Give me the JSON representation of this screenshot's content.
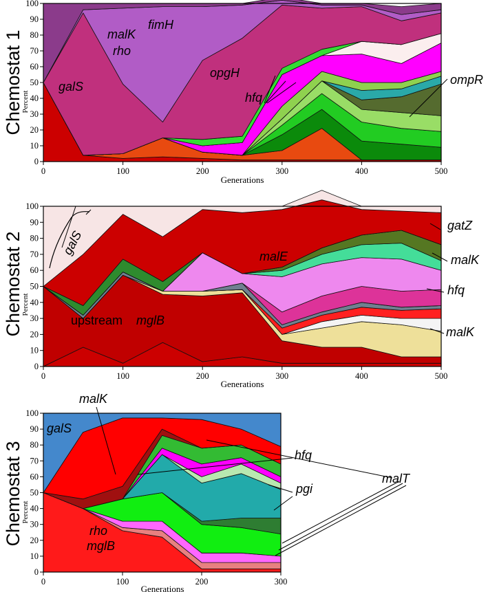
{
  "chart_data": [
    {
      "type": "area",
      "title": "Chemostat 1",
      "xlabel": "Generations",
      "ylabel": "Percent",
      "xlim": [
        0,
        500
      ],
      "ylim": [
        0,
        100
      ],
      "xticks": [
        0,
        100,
        200,
        300,
        400,
        500
      ],
      "yticks": [
        0,
        10,
        20,
        30,
        40,
        50,
        60,
        70,
        80,
        90,
        100
      ],
      "x": [
        0,
        50,
        100,
        150,
        200,
        250,
        300,
        350,
        400,
        450,
        500
      ],
      "series": [
        {
          "name": "galS",
          "color": "#cc0000",
          "values": [
            50,
            4,
            2,
            3,
            2,
            1,
            1,
            1,
            1,
            1,
            1
          ]
        },
        {
          "name": "orange",
          "color": "#e84a10",
          "values": [
            0,
            0,
            3,
            12,
            4,
            3,
            6,
            20,
            0,
            0,
            0
          ]
        },
        {
          "name": "dark green",
          "color": "#0b8a0b",
          "values": [
            0,
            0,
            0,
            0,
            0,
            0,
            10,
            12,
            12,
            10,
            8
          ]
        },
        {
          "name": "green",
          "color": "#22cc22",
          "values": [
            0,
            0,
            0,
            0,
            0,
            0,
            6,
            10,
            12,
            10,
            10
          ]
        },
        {
          "name": "light green",
          "color": "#99dd66",
          "values": [
            0,
            0,
            0,
            0,
            0,
            0,
            4,
            8,
            8,
            10,
            10
          ]
        },
        {
          "name": "ompR",
          "color": "#556b2f",
          "values": [
            0,
            0,
            0,
            0,
            0,
            0,
            0,
            0,
            6,
            10,
            20
          ]
        },
        {
          "name": "teal",
          "color": "#2aa9a9",
          "values": [
            0,
            0,
            0,
            0,
            0,
            0,
            0,
            0,
            6,
            5,
            5
          ]
        },
        {
          "name": "hfq",
          "color": "#8fd14f",
          "values": [
            0,
            0,
            0,
            0,
            0,
            0,
            8,
            6,
            5,
            4,
            3
          ]
        },
        {
          "name": "opgH",
          "color": "#ff00ff",
          "values": [
            0,
            0,
            0,
            0,
            4,
            8,
            20,
            10,
            18,
            12,
            18
          ]
        },
        {
          "name": "white",
          "color": "#fbeeee",
          "values": [
            0,
            0,
            0,
            0,
            0,
            0,
            0,
            0,
            8,
            12,
            6
          ]
        },
        {
          "name": "green band",
          "color": "#33dd33",
          "values": [
            0,
            0,
            0,
            0,
            4,
            4,
            4,
            4,
            0,
            0,
            0
          ]
        },
        {
          "name": "malK rho",
          "color": "#c0307d",
          "values": [
            0,
            90,
            44,
            10,
            50,
            62,
            40,
            26,
            22,
            15,
            13
          ]
        },
        {
          "name": "fimH",
          "color": "#b15cc6",
          "values": [
            0,
            2,
            48,
            73,
            34,
            21,
            3,
            2,
            1,
            4,
            2
          ]
        },
        {
          "name": "purple top",
          "color": "#8b3b8b",
          "values": [
            50,
            4,
            3,
            2,
            2,
            1,
            2,
            1,
            1,
            5,
            4
          ]
        }
      ],
      "annotations": [
        "galS",
        "malK",
        "rho",
        "fimH",
        "opgH",
        "hfq",
        "ompR"
      ]
    },
    {
      "type": "area",
      "title": "Chemostat 2",
      "xlabel": "Generations",
      "ylabel": "Percent",
      "xlim": [
        0,
        500
      ],
      "ylim": [
        0,
        100
      ],
      "xticks": [
        0,
        100,
        200,
        300,
        400,
        500
      ],
      "yticks": [
        0,
        10,
        20,
        30,
        40,
        50,
        60,
        70,
        80,
        90,
        100
      ],
      "x": [
        0,
        50,
        100,
        150,
        200,
        250,
        300,
        350,
        400,
        450,
        500
      ],
      "series": [
        {
          "name": "upstream mglB (lower)",
          "color": "#cc0000",
          "values": [
            0,
            12,
            2,
            15,
            3,
            6,
            2,
            2,
            2,
            2,
            2
          ]
        },
        {
          "name": "upstream mglB",
          "color": "#c00000",
          "values": [
            50,
            18,
            55,
            30,
            41,
            40,
            14,
            10,
            10,
            4,
            4
          ]
        },
        {
          "name": "yellow",
          "color": "#eee09a",
          "values": [
            0,
            0,
            0,
            2,
            3,
            2,
            4,
            12,
            16,
            20,
            16
          ]
        },
        {
          "name": "white",
          "color": "#f4f4f4",
          "values": [
            0,
            0,
            0,
            0,
            0,
            0,
            0,
            4,
            4,
            4,
            8
          ]
        },
        {
          "name": "malK (lower)",
          "color": "#ff2020",
          "values": [
            0,
            0,
            0,
            0,
            0,
            0,
            4,
            4,
            5,
            5,
            6
          ]
        },
        {
          "name": "grey",
          "color": "#708090",
          "values": [
            0,
            2,
            2,
            0,
            0,
            4,
            2,
            2,
            3,
            2,
            2
          ]
        },
        {
          "name": "hfq",
          "color": "#dd3399",
          "values": [
            0,
            0,
            0,
            0,
            0,
            0,
            8,
            10,
            10,
            10,
            10
          ]
        },
        {
          "name": "malE",
          "color": "#ee88ee",
          "values": [
            0,
            0,
            0,
            0,
            24,
            6,
            22,
            20,
            18,
            20,
            12
          ]
        },
        {
          "name": "malK (upper)",
          "color": "#44dd99",
          "values": [
            0,
            0,
            0,
            0,
            0,
            0,
            4,
            6,
            8,
            10,
            6
          ]
        },
        {
          "name": "gatZ",
          "color": "#557722",
          "values": [
            0,
            0,
            0,
            0,
            0,
            0,
            2,
            4,
            6,
            8,
            10
          ]
        },
        {
          "name": "galS green",
          "color": "#2e8b2e",
          "values": [
            0,
            6,
            8,
            6,
            0,
            0,
            0,
            0,
            0,
            0,
            0
          ]
        },
        {
          "name": "red top",
          "color": "#cc0000",
          "values": [
            0,
            32,
            28,
            28,
            27,
            38,
            36,
            30,
            16,
            12,
            20
          ]
        },
        {
          "name": "pink top",
          "color": "#f7e5e5",
          "values": [
            50,
            30,
            5,
            19,
            2,
            4,
            2,
            6,
            2,
            3,
            4
          ]
        }
      ],
      "annotations": [
        "galS",
        "malE",
        "upstream",
        "mglB",
        "gatZ",
        "malK",
        "hfq",
        "malK"
      ]
    },
    {
      "type": "area",
      "title": "Chemostat 3",
      "xlabel": "Generations",
      "ylabel": "Percent",
      "xlim": [
        0,
        300
      ],
      "ylim": [
        0,
        100
      ],
      "xticks": [
        0,
        100,
        200,
        300
      ],
      "yticks": [
        0,
        10,
        20,
        30,
        40,
        50,
        60,
        70,
        80,
        90,
        100
      ],
      "x": [
        0,
        50,
        100,
        150,
        200,
        250,
        300
      ],
      "series": [
        {
          "name": "rho mglB",
          "color": "#ff1a1a",
          "values": [
            50,
            40,
            26,
            22,
            2,
            2,
            2
          ]
        },
        {
          "name": "salmon",
          "color": "#e88080",
          "values": [
            0,
            0,
            2,
            4,
            4,
            4,
            4
          ]
        },
        {
          "name": "pink",
          "color": "#ff66ff",
          "values": [
            0,
            0,
            4,
            6,
            6,
            6,
            4
          ]
        },
        {
          "name": "green",
          "color": "#11ee11",
          "values": [
            0,
            0,
            14,
            18,
            18,
            16,
            14
          ]
        },
        {
          "name": "dark green",
          "color": "#2e7d32",
          "values": [
            0,
            0,
            0,
            0,
            2,
            6,
            10
          ]
        },
        {
          "name": "teal",
          "color": "#22aaaa",
          "values": [
            0,
            0,
            0,
            24,
            24,
            28,
            18
          ]
        },
        {
          "name": "pgi",
          "color": "#b8e8b0",
          "values": [
            0,
            0,
            0,
            0,
            4,
            6,
            4
          ]
        },
        {
          "name": "hfq",
          "color": "#ff00ff",
          "values": [
            0,
            0,
            0,
            4,
            8,
            4,
            4
          ]
        },
        {
          "name": "malT",
          "color": "#33bb33",
          "values": [
            0,
            0,
            0,
            8,
            10,
            8,
            8
          ]
        },
        {
          "name": "malK",
          "color": "#a01010",
          "values": [
            0,
            6,
            8,
            4,
            0,
            0,
            0
          ]
        },
        {
          "name": "galS",
          "color": "#ff0000",
          "values": [
            0,
            42,
            43,
            7,
            18,
            10,
            11
          ]
        },
        {
          "name": "top",
          "color": "#4488cc",
          "values": [
            50,
            12,
            3,
            3,
            4,
            10,
            21
          ]
        }
      ],
      "annotations": [
        "galS",
        "malK",
        "hfq",
        "pgi",
        "malT",
        "rho",
        "mglB"
      ]
    }
  ]
}
